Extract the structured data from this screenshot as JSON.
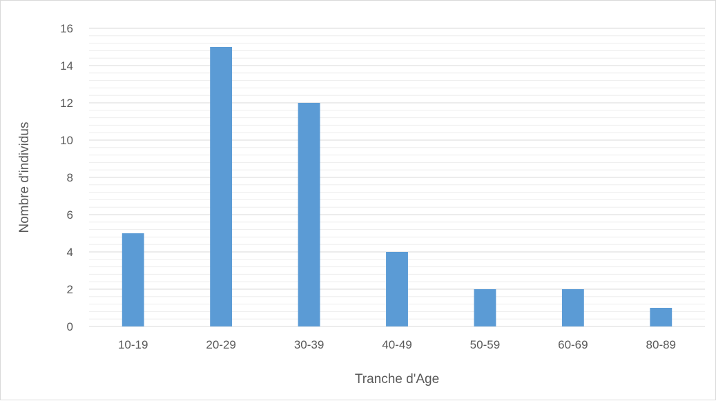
{
  "chart_data": {
    "type": "bar",
    "title": "",
    "xlabel": "Tranche d'Age",
    "ylabel": "Nombre d'individus",
    "categories": [
      "10-19",
      "20-29",
      "30-39",
      "40-49",
      "50-59",
      "60-69",
      "80-89"
    ],
    "values": [
      5,
      15,
      12,
      4,
      2,
      2,
      1
    ],
    "ylim": [
      0,
      16
    ],
    "y_ticks": [
      "0",
      "2",
      "4",
      "6",
      "8",
      "10",
      "12",
      "14",
      "16"
    ],
    "grid": "major and minor horizontal gridlines",
    "legend": "none",
    "colors": {
      "bar": "#5b9bd5",
      "major_grid": "#d9d9d9",
      "minor_grid": "#ededed",
      "text": "#595959"
    }
  }
}
